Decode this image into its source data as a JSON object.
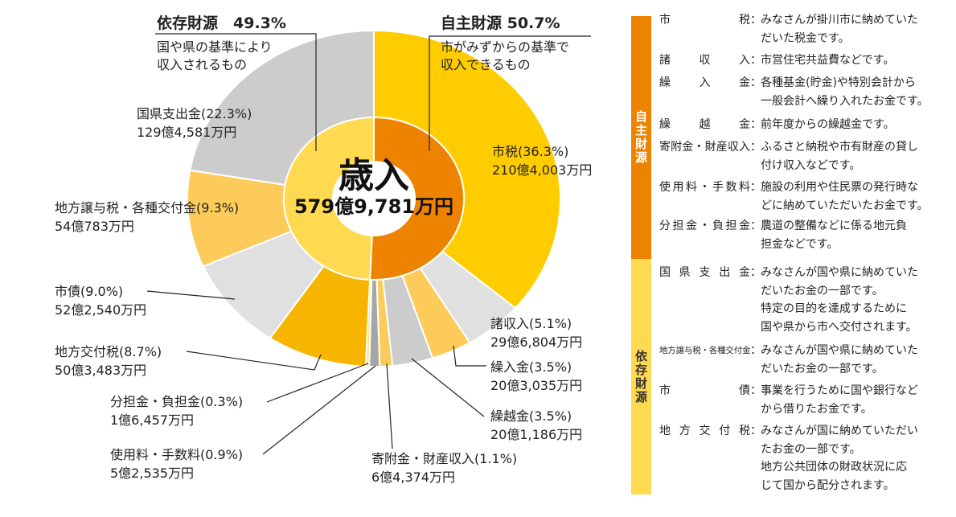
{
  "chart_data": {
    "type": "pie",
    "style": "donut",
    "title": "歳入",
    "total": "579億9,781万円",
    "inner_ring": [
      {
        "name": "自主財源",
        "percent": 50.7,
        "color": "#EE8300"
      },
      {
        "name": "依存財源",
        "percent": 49.3,
        "color": "#FFD94F"
      }
    ],
    "outer_ring": [
      {
        "name": "市税",
        "percent": 36.3,
        "amount": "210億4,003万円",
        "color": "#FFCC00"
      },
      {
        "name": "諸収入",
        "percent": 5.1,
        "amount": "29億6,804万円",
        "color": "#E0E0E0"
      },
      {
        "name": "繰入金",
        "percent": 3.5,
        "amount": "20億3,035万円",
        "color": "#FCCB5A"
      },
      {
        "name": "繰越金",
        "percent": 3.5,
        "amount": "20億1,186万円",
        "color": "#CCCCCC"
      },
      {
        "name": "寄附金・財産収入",
        "percent": 1.1,
        "amount": "6億4,374万円",
        "color": "#FCCB5A"
      },
      {
        "name": "使用料・手数料",
        "percent": 0.9,
        "amount": "5億2,535万円",
        "color": "#A6A6A6"
      },
      {
        "name": "分担金・負担金",
        "percent": 0.3,
        "amount": "1億6,457万円",
        "color": "#FFE080"
      },
      {
        "name": "地方交付税",
        "percent": 8.7,
        "amount": "50億3,483万円",
        "color": "#F8B500"
      },
      {
        "name": "市債",
        "percent": 9.0,
        "amount": "52億2,540万円",
        "color": "#E0E0E0"
      },
      {
        "name": "地方譲与税・各種交付金",
        "percent": 9.3,
        "amount": "54億783万円",
        "color": "#FCCB5A"
      },
      {
        "name": "国県支出金",
        "percent": 22.3,
        "amount": "129億4,581万円",
        "color": "#CCCCCC"
      }
    ]
  },
  "labels": {
    "shizei": [
      "市税(36.3%)",
      "210億4,003万円"
    ],
    "shoshunyu": [
      "諸収入(5.1%)",
      "29億6,804万円"
    ],
    "kurireki": [
      "繰入金(3.5%)",
      "20億3,035万円"
    ],
    "kurikoshi": [
      "繰越金(3.5%)",
      "20億1,186万円"
    ],
    "kifu": [
      "寄附金・財産収入(1.1%)",
      "6億4,374万円"
    ],
    "shiyo": [
      "使用料・手数料(0.9%)",
      "5億2,535万円"
    ],
    "buntan": [
      "分担金・負担金(0.3%)",
      "1億6,457万円"
    ],
    "kofuzei": [
      "地方交付税(8.7%)",
      "50億3,483万円"
    ],
    "shisai": [
      "市債(9.0%)",
      "52億2,540万円"
    ],
    "joyo": [
      "地方譲与税・各種交付金(9.3%)",
      "54億783万円"
    ],
    "kenshishutsu": [
      "国県支出金(22.3%)",
      "129億4,581万円"
    ]
  },
  "groups": {
    "izon": {
      "title": "依存財源　49.3%",
      "sub": [
        "国や県の基準により",
        "収入されるもの"
      ]
    },
    "jishu": {
      "title": "自主財源  50.7%",
      "sub": [
        "市がみずからの基準で",
        "収入できるもの"
      ]
    }
  },
  "center": {
    "title": "歳入",
    "value": "579億9,781万円"
  },
  "legend": {
    "jishu_label": "自主財源",
    "izon_label": "依存財源",
    "jishu_color": "#EE8300",
    "izon_color": "#FFD94F",
    "colon": "：",
    "rows": [
      {
        "term": "市税",
        "desc": [
          "みなさんが掛川市に納めていた",
          "だいた税金です。"
        ]
      },
      {
        "term": "諸収入",
        "desc": [
          "市営住宅共益費などです。"
        ]
      },
      {
        "term": "繰入金",
        "desc": [
          "各種基金(貯金)や特別会計から",
          "一般会計へ繰り入れたお金です。"
        ]
      },
      {
        "term": "繰越金",
        "desc": [
          "前年度からの繰越金です。"
        ]
      },
      {
        "term": "寄附金・財産収入",
        "desc": [
          "ふるさと納税や市有財産の貸し",
          "付け収入などです。"
        ]
      },
      {
        "term": "使用料・手数料",
        "desc": [
          "施設の利用や住民票の発行時な",
          "どに納めていただいたお金です。"
        ]
      },
      {
        "term": "分担金・負担金",
        "desc": [
          "農道の整備などに係る地元負",
          "担金などです。"
        ]
      },
      {
        "term": "国県支出金",
        "desc": [
          "みなさんが国や県に納めていた",
          "だいたお金の一部です。",
          "特定の目的を達成するために",
          "国や県から市へ交付されます。"
        ]
      },
      {
        "term": "地方譲与税・各種交付金",
        "desc": [
          "みなさんが国や県に納めていた",
          "だいたお金の一部です。"
        ]
      },
      {
        "term": "市債",
        "desc": [
          "事業を行うために国や銀行など",
          "から借りたお金です。"
        ]
      },
      {
        "term": "地方交付税",
        "desc": [
          "みなさんが国に納めていただい",
          "たお金の一部です。",
          "地方公共団体の財政状況に応",
          "じて国から配分されます。"
        ]
      }
    ]
  }
}
